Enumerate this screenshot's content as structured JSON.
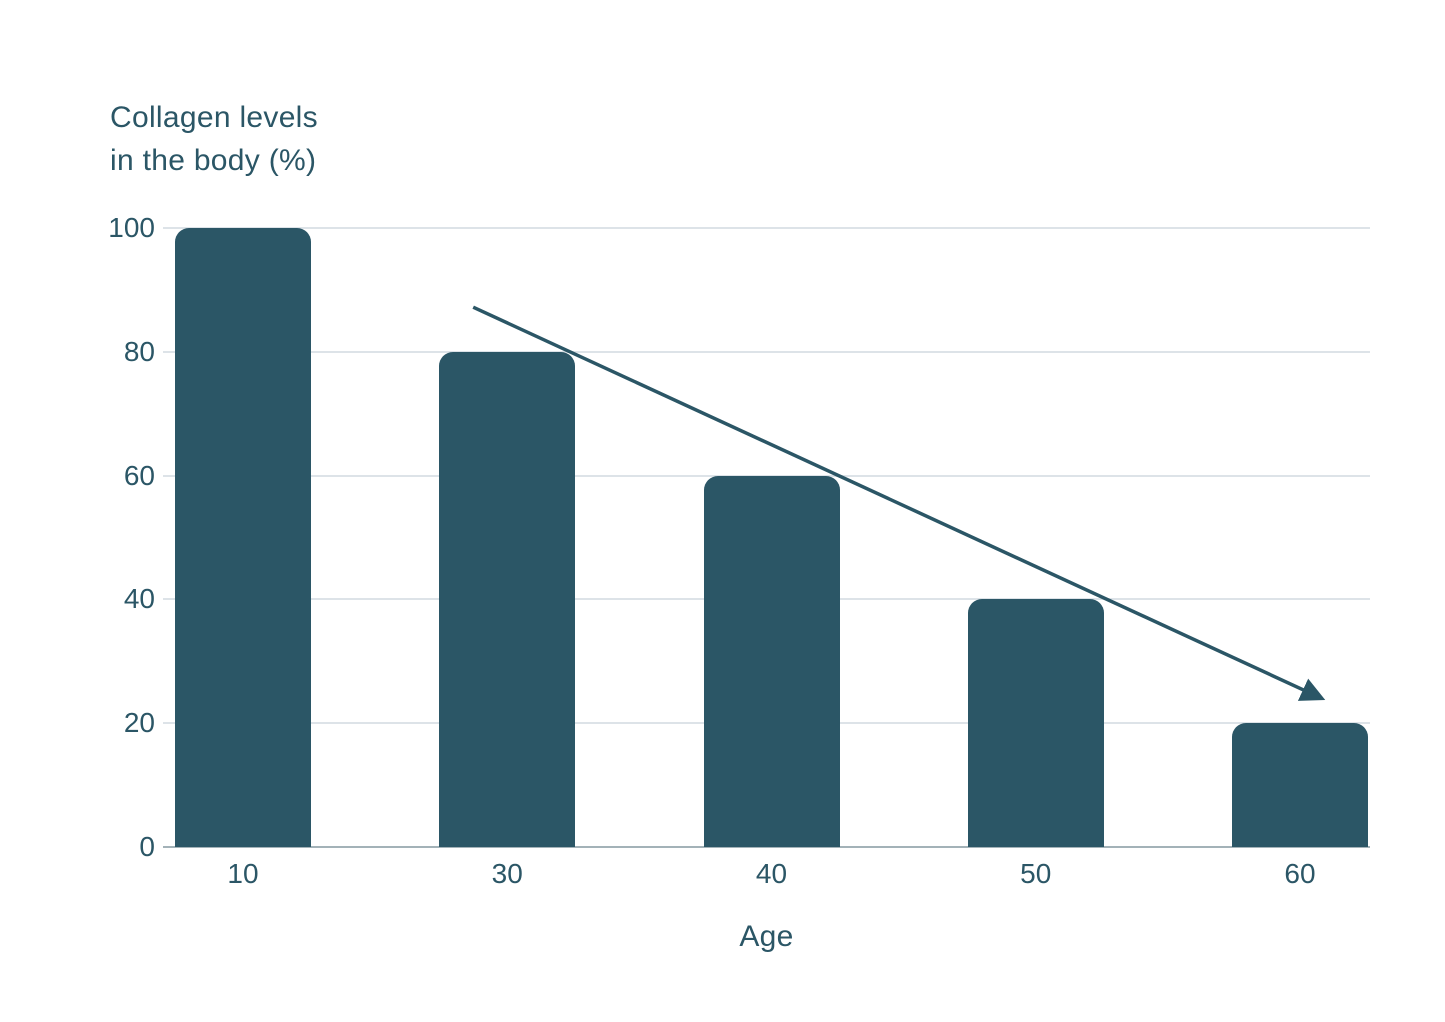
{
  "chart_data": {
    "type": "bar",
    "title": "Collagen levels in the body (%)",
    "title_lines": [
      "Collagen levels",
      "in the body (%)"
    ],
    "xlabel": "Age",
    "ylabel": "Collagen levels in the body (%)",
    "categories": [
      "10",
      "30",
      "40",
      "50",
      "60"
    ],
    "values": [
      100,
      80,
      60,
      40,
      20
    ],
    "ylim": [
      0,
      100
    ],
    "yticks": [
      0,
      20,
      40,
      60,
      80,
      100
    ],
    "grid": "horizontal-light",
    "legend": "none",
    "colors": {
      "bar": "#2B5666",
      "text": "#2B5666",
      "gridline": "#DDE3E8",
      "axis_line": "#A3B2B8",
      "background": "#FFFFFF"
    },
    "annotation": {
      "type": "downward-trend-arrow",
      "description": "straight arrow descending from above the age-30 bar to above the age-60 bar",
      "from_pct": {
        "x": 25.7,
        "y": 12.8
      },
      "to_pct": {
        "x": 95.9,
        "y": 75.9
      }
    }
  }
}
